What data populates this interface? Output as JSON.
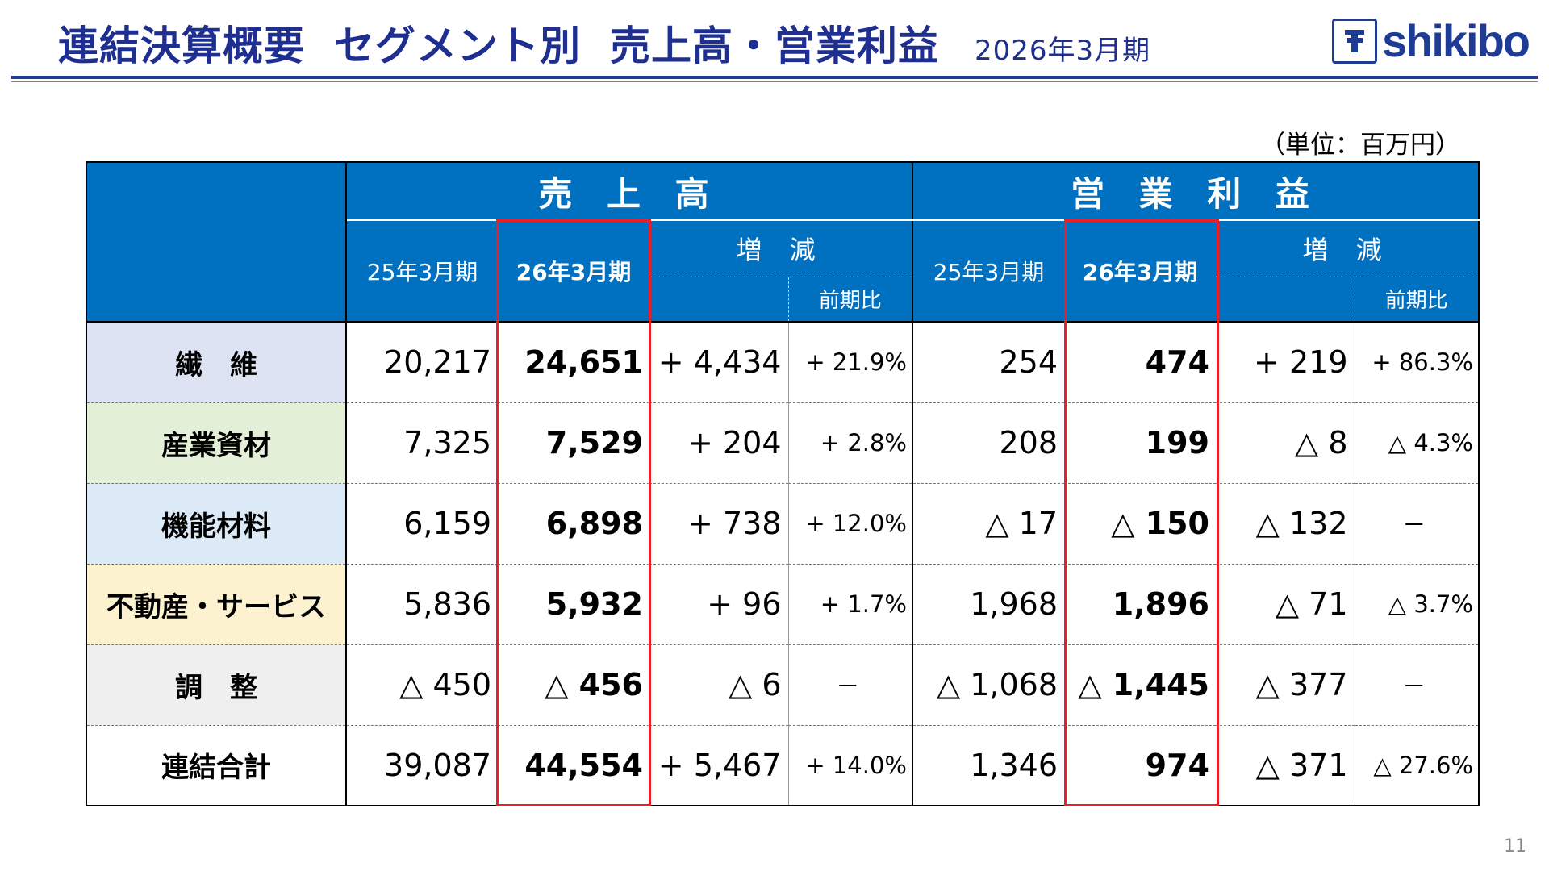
{
  "header": {
    "title_parts": [
      "連結決算概要",
      "セグメント別",
      "売上高・営業利益"
    ],
    "period": "2026年3月期",
    "logo_text": "shikibo"
  },
  "unit": "（単位：百万円）",
  "table": {
    "groups": [
      "売 上 高",
      "営 業 利 益"
    ],
    "col_prev": "25年3月期",
    "col_curr": "26年3月期",
    "col_change": "増 減",
    "col_ratio": "前期比",
    "rows": [
      {
        "label": "繊　維",
        "bg": "#dde3f2",
        "s": [
          "20,217",
          "24,651",
          "+ 4,434",
          "+ 21.9%"
        ],
        "p": [
          "254",
          "474",
          "+ 219",
          "+ 86.3%"
        ]
      },
      {
        "label": "産業資材",
        "bg": "#e4efd8",
        "s": [
          "7,325",
          "7,529",
          "+ 204",
          "+ 2.8%"
        ],
        "p": [
          "208",
          "199",
          "△ 8",
          "△ 4.3%"
        ]
      },
      {
        "label": "機能材料",
        "bg": "#dce9f6",
        "s": [
          "6,159",
          "6,898",
          "+ 738",
          "+ 12.0%"
        ],
        "p": [
          "△ 17",
          "△ 150",
          "△ 132",
          "－"
        ]
      },
      {
        "label": "不動産・サービス",
        "bg": "#fdf2cf",
        "s": [
          "5,836",
          "5,932",
          "+ 96",
          "+ 1.7%"
        ],
        "p": [
          "1,968",
          "1,896",
          "△ 71",
          "△ 3.7%"
        ]
      },
      {
        "label": "調　整",
        "bg": "#efefef",
        "s": [
          "△ 450",
          "△ 456",
          "△ 6",
          "－"
        ],
        "p": [
          "△ 1,068",
          "△ 1,445",
          "△ 377",
          "－"
        ]
      },
      {
        "label": "連結合計",
        "bg": "#ffffff",
        "s": [
          "39,087",
          "44,554",
          "+ 5,467",
          "+ 14.0%"
        ],
        "p": [
          "1,346",
          "974",
          "△ 371",
          "△ 27.6%"
        ]
      }
    ]
  },
  "page_number": "11",
  "colors": {
    "header_blue": "#0070c0",
    "title_navy": "#1e2f8f",
    "highlight_red": "#e8202a"
  }
}
